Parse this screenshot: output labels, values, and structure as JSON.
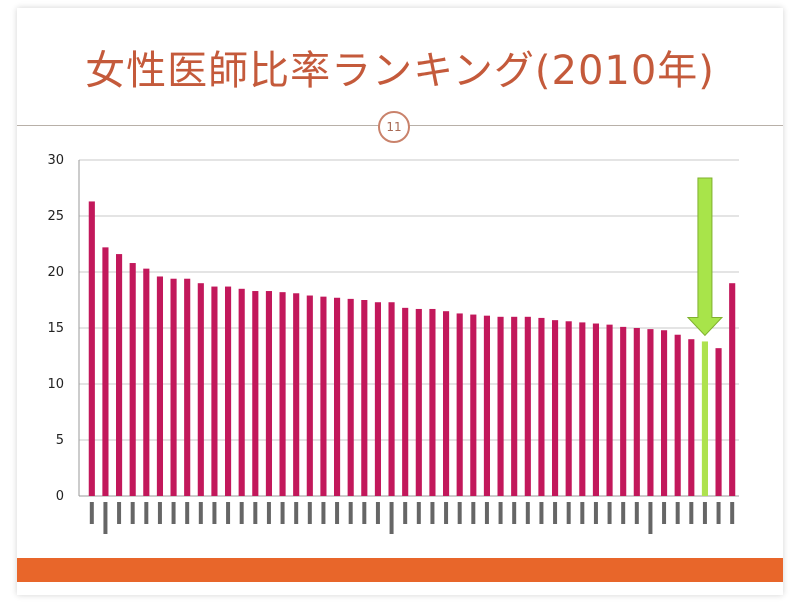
{
  "slide": {
    "title": "女性医師比率ランキング(2010年)",
    "page_number": "11"
  },
  "colors": {
    "title": "#c45a3b",
    "bar": "#c2185b",
    "highlight_bar": "#aee24e",
    "arrow": "#a8e44a",
    "footer": "#e8662a"
  },
  "chart_data": {
    "type": "bar",
    "title": "",
    "xlabel": "",
    "ylabel": "",
    "ylim": [
      0,
      30
    ],
    "yticks": [
      0,
      5,
      10,
      15,
      20,
      25,
      30
    ],
    "grid": true,
    "highlight_index": 45,
    "annotation": "down-arrow-icon above highlighted bar",
    "values": [
      26.3,
      22.2,
      21.6,
      20.8,
      20.3,
      19.6,
      19.4,
      19.4,
      19.0,
      18.7,
      18.7,
      18.5,
      18.3,
      18.3,
      18.2,
      18.1,
      17.9,
      17.8,
      17.7,
      17.6,
      17.5,
      17.3,
      17.3,
      16.8,
      16.7,
      16.7,
      16.5,
      16.3,
      16.2,
      16.1,
      16.0,
      16.0,
      16.0,
      15.9,
      15.7,
      15.6,
      15.5,
      15.4,
      15.3,
      15.1,
      15.0,
      14.9,
      14.8,
      14.4,
      14.0,
      13.8,
      13.2,
      19.0
    ]
  }
}
